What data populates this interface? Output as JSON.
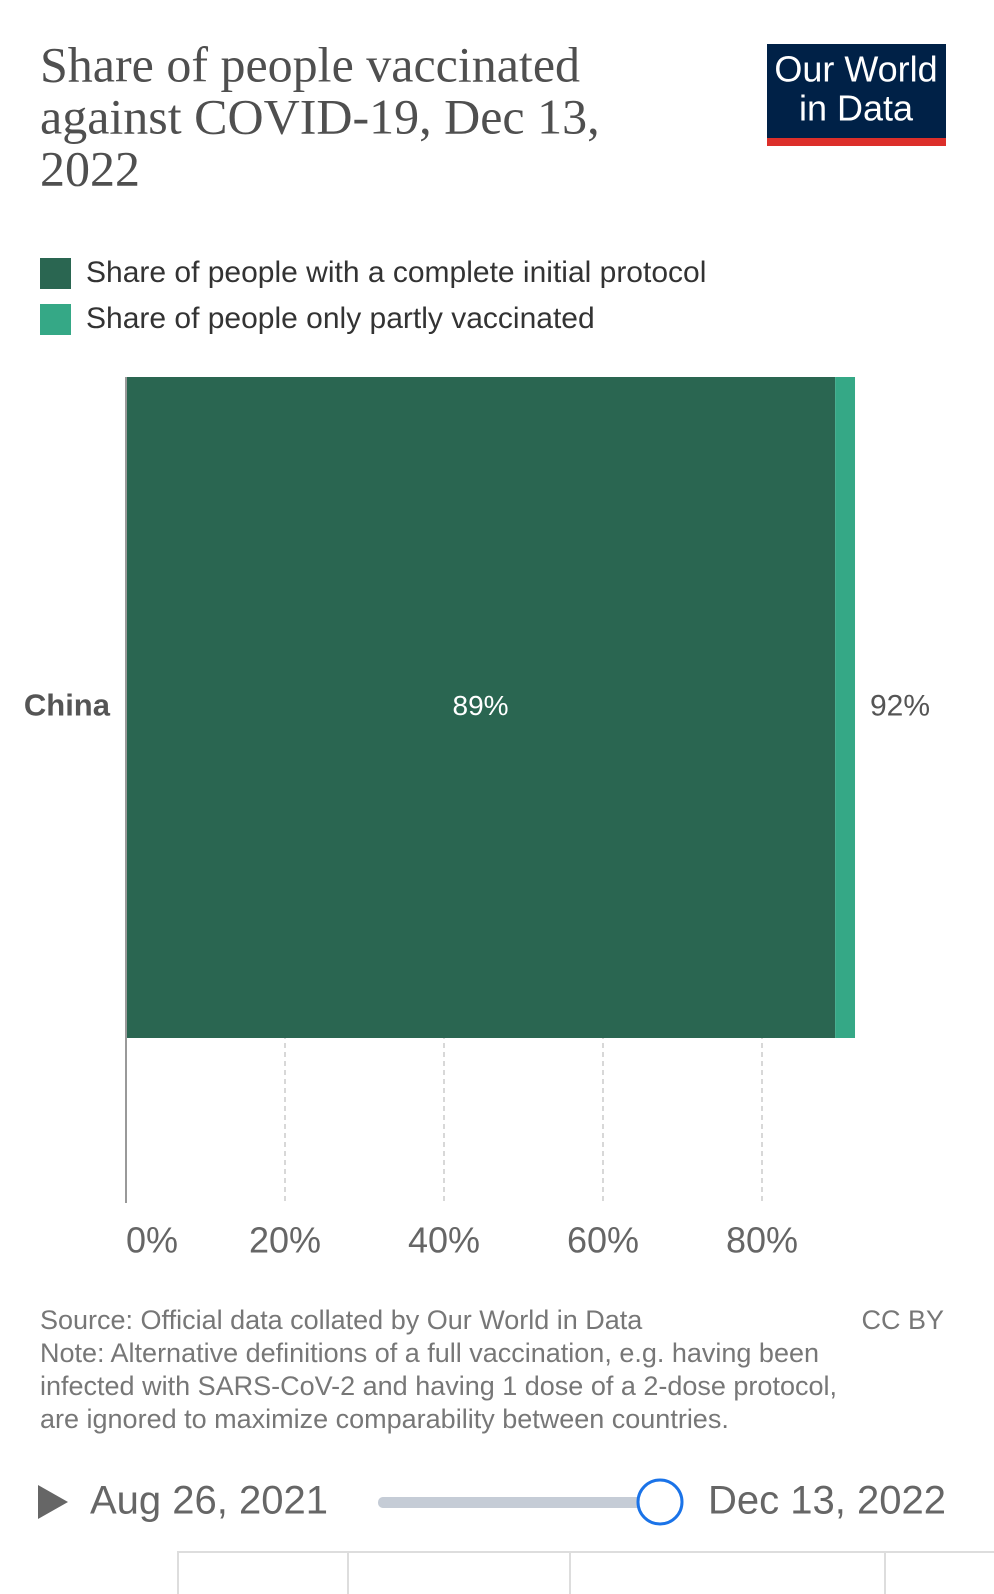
{
  "chart_data": {
    "type": "stacked-bar-horizontal",
    "title": [
      "Share of people vaccinated",
      "against COVID-19, Dec 13,",
      "2022"
    ],
    "logo": [
      "Our World",
      "in Data"
    ],
    "categories": [
      "China"
    ],
    "series": [
      {
        "name": "Share of people with a complete initial protocol",
        "color": "#2a6651",
        "values": [
          89.2
        ],
        "value_labels": [
          "89%"
        ]
      },
      {
        "name": "Share of people only partly vaccinated",
        "color": "#35a886",
        "values": [
          2.5
        ]
      }
    ],
    "totals": [
      91.7
    ],
    "total_labels": [
      "92%"
    ],
    "xlim": [
      0,
      100
    ],
    "xticks": [
      {
        "value": 0,
        "label": "0%"
      },
      {
        "value": 20,
        "label": "20%"
      },
      {
        "value": 40,
        "label": "40%"
      },
      {
        "value": 60,
        "label": "60%"
      },
      {
        "value": 80,
        "label": "80%"
      }
    ],
    "grid": true,
    "source": "Source: Official data collated by Our World in Data",
    "license": "CC BY",
    "note": [
      "Note: Alternative definitions of a full vaccination, e.g. having been",
      "infected with SARS-CoV-2 and having 1 dose of a 2-dose protocol,",
      "are ignored to maximize comparability between countries."
    ],
    "timeline": {
      "start": "Aug 26, 2021",
      "end": "Dec 13, 2022"
    }
  }
}
